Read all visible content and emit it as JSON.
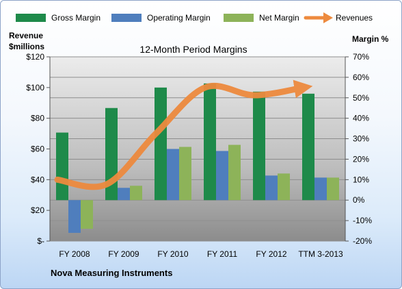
{
  "chart_data": {
    "type": "bar",
    "title": "12-Month Period Margins",
    "company": "Nova Measuring Instruments",
    "left_axis_label": [
      "Revenue",
      "$millions"
    ],
    "right_axis_label": "Margin %",
    "categories": [
      "FY 2008",
      "FY 2009",
      "FY 2010",
      "FY 2011",
      "FY 2012",
      "TTM 3-2013"
    ],
    "series": [
      {
        "name": "Gross Margin",
        "axis": "right",
        "color": "#1e8a4a",
        "values": [
          33,
          45,
          55,
          57,
          53,
          52
        ]
      },
      {
        "name": "Operating Margin",
        "axis": "right",
        "color": "#4f7ebd",
        "values": [
          -16,
          6,
          25,
          24,
          12,
          11
        ]
      },
      {
        "name": "Net Margin",
        "axis": "right",
        "color": "#8db359",
        "values": [
          -14,
          7,
          26,
          27,
          13,
          11
        ]
      }
    ],
    "line_series": {
      "name": "Revenues",
      "axis": "left",
      "color": "#ed8a3e",
      "values": [
        40,
        37,
        70,
        100,
        95,
        100
      ]
    },
    "left_axis": {
      "min": 0,
      "max": 120,
      "ticks": [
        "$-",
        "$20",
        "$40",
        "$60",
        "$80",
        "$100",
        "$120"
      ]
    },
    "right_axis": {
      "min": -20,
      "max": 70,
      "ticks": [
        "-20%",
        "-10%",
        "0%",
        "10%",
        "20%",
        "30%",
        "40%",
        "50%",
        "60%",
        "70%"
      ]
    },
    "grid": true,
    "legend_position": "top"
  }
}
